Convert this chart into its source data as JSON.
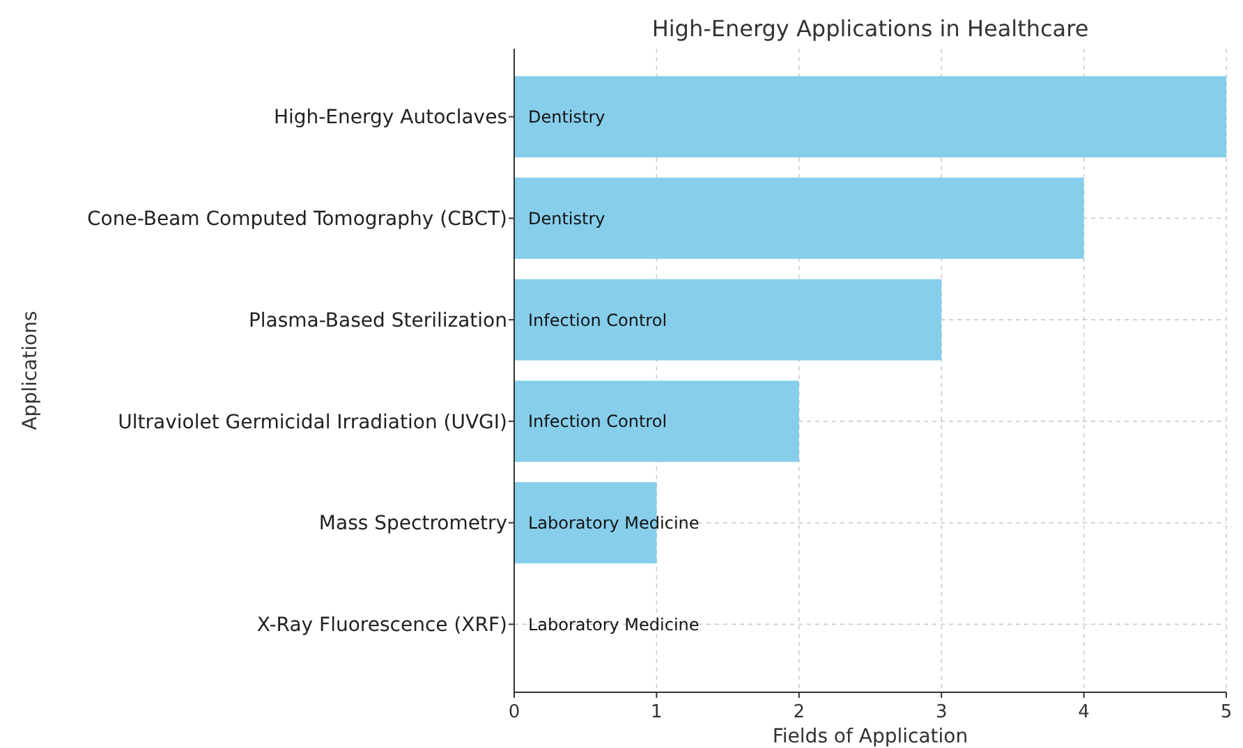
{
  "chart_data": {
    "type": "bar",
    "orientation": "horizontal",
    "title": "High-Energy Applications in Healthcare",
    "xlabel": "Fields of Application",
    "ylabel": "Applications",
    "categories": [
      "High-Energy Autoclaves",
      "Cone-Beam Computed Tomography (CBCT)",
      "Plasma-Based Sterilization",
      "Ultraviolet Germicidal Irradiation (UVGI)",
      "Mass Spectrometry",
      "X-Ray Fluorescence (XRF)"
    ],
    "values": [
      5,
      4,
      3,
      2,
      1,
      0
    ],
    "color": "#87ceeb",
    "xlim": [
      0,
      5
    ],
    "xticks": [
      0,
      1,
      2,
      3,
      4,
      5
    ],
    "grid": true,
    "value_labels": [
      "Dentistry",
      "Dentistry",
      "Infection Control",
      "Infection Control",
      "Laboratory Medicine",
      "Laboratory Medicine"
    ]
  }
}
